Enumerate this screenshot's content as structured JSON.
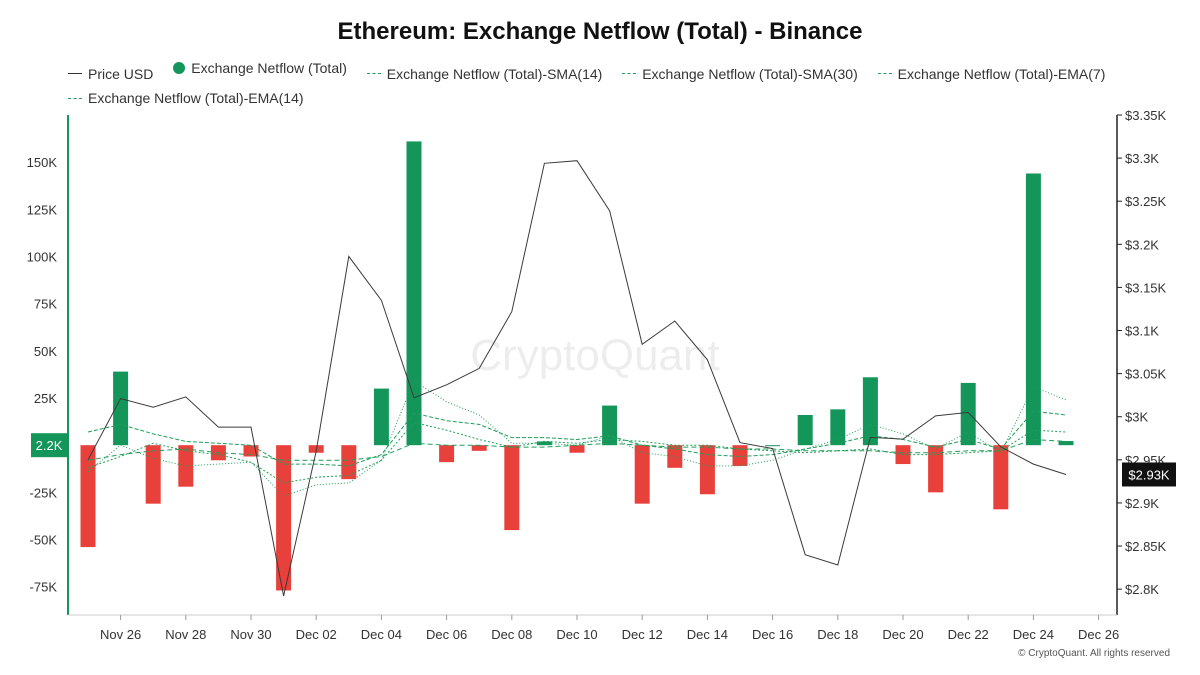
{
  "chart_data": {
    "type": "bar",
    "title": "Ethereum: Exchange Netflow (Total) - Binance",
    "legend": {
      "price": "Price USD",
      "netflow": "Exchange Netflow (Total)",
      "sma14": "Exchange Netflow (Total)-SMA(14)",
      "sma30": "Exchange Netflow (Total)-SMA(30)",
      "ema7": "Exchange Netflow (Total)-EMA(7)",
      "ema14": "Exchange Netflow (Total)-EMA(14)"
    },
    "x_dates": [
      "Nov 25",
      "Nov 26",
      "Nov 27",
      "Nov 28",
      "Nov 29",
      "Nov 30",
      "Dec 01",
      "Dec 02",
      "Dec 03",
      "Dec 04",
      "Dec 05",
      "Dec 06",
      "Dec 07",
      "Dec 08",
      "Dec 09",
      "Dec 10",
      "Dec 11",
      "Dec 12",
      "Dec 13",
      "Dec 14",
      "Dec 15",
      "Dec 16",
      "Dec 17",
      "Dec 18",
      "Dec 19",
      "Dec 20",
      "Dec 21",
      "Dec 22",
      "Dec 23",
      "Dec 24",
      "Dec 25"
    ],
    "x_tick_labels": [
      "Nov 26",
      "Nov 28",
      "Nov 30",
      "Dec 02",
      "Dec 04",
      "Dec 06",
      "Dec 08",
      "Dec 10",
      "Dec 12",
      "Dec 14",
      "Dec 16",
      "Dec 18",
      "Dec 20",
      "Dec 22",
      "Dec 24",
      "Dec 26"
    ],
    "netflow": [
      -54000,
      39000,
      -31000,
      -22000,
      -8000,
      -6000,
      -77000,
      -4000,
      -18000,
      30000,
      161000,
      -9000,
      -3000,
      -45000,
      2000,
      -4000,
      21000,
      -31000,
      -12000,
      -26000,
      -11000,
      0,
      16000,
      19000,
      36000,
      -10000,
      -25000,
      33000,
      -34000,
      144000,
      2200
    ],
    "price_usd": [
      2950,
      3021,
      3011,
      3023,
      2988,
      2988,
      2792,
      2960,
      3186,
      3135,
      3022,
      3037,
      3056,
      3122,
      3294,
      3297,
      3239,
      3084,
      3111,
      3066,
      2970,
      2963,
      2840,
      2828,
      2976,
      2974,
      3001,
      3005,
      2965,
      2945,
      2933
    ],
    "sma14": [
      -12000,
      -6000,
      1000,
      -3000,
      -5000,
      -9000,
      -20000,
      -17000,
      -16000,
      -8000,
      12000,
      8000,
      3000,
      -1000,
      2000,
      1000,
      3000,
      2000,
      0,
      0,
      -2000,
      -3000,
      -4000,
      -3000,
      -2000,
      -5000,
      -5000,
      -4000,
      -3000,
      8000,
      7000
    ],
    "sma30": [
      -8000,
      -5000,
      -3000,
      -2000,
      -4000,
      -5000,
      -8000,
      -8000,
      -8000,
      -6000,
      1000,
      0,
      0,
      -1000,
      -1000,
      0,
      1000,
      0,
      -1000,
      -1000,
      -2000,
      -2000,
      -3000,
      -3000,
      -3000,
      -4000,
      -4000,
      -3000,
      -3000,
      3000,
      2000
    ],
    "ema7": [
      -14000,
      0,
      -7000,
      -11000,
      -10000,
      -9000,
      -27000,
      -21000,
      -20000,
      -8000,
      34000,
      23000,
      16000,
      1000,
      1000,
      0,
      5000,
      -4000,
      -6000,
      -11000,
      -11000,
      -8000,
      -2000,
      3000,
      11000,
      6000,
      -2000,
      7000,
      -4000,
      31000,
      24000
    ],
    "ema14": [
      7000,
      11000,
      6000,
      2000,
      1000,
      0,
      -10000,
      -10000,
      -11000,
      -5000,
      17000,
      13000,
      11000,
      4000,
      4000,
      3000,
      5000,
      0,
      -2000,
      -5000,
      -6000,
      -5000,
      -2000,
      1000,
      5000,
      3000,
      -1000,
      3000,
      -2000,
      18000,
      16000
    ],
    "y_left": {
      "min": -90000,
      "max": 175000,
      "ticks": [
        -75000,
        -50000,
        -25000,
        0,
        25000,
        50000,
        75000,
        100000,
        125000,
        150000
      ],
      "tick_labels": [
        "-75K",
        "-50K",
        "-25K",
        "0",
        "25K",
        "50K",
        "75K",
        "100K",
        "125K",
        "150K"
      ]
    },
    "y_right": {
      "min": 2770,
      "max": 3350,
      "ticks": [
        2800,
        2850,
        2900,
        2950,
        3000,
        3050,
        3100,
        3150,
        3200,
        3250,
        3300,
        3350
      ],
      "tick_labels": [
        "$2.8K",
        "$2.85K",
        "$2.9K",
        "$2.95K",
        "$3K",
        "$3.05K",
        "$3.1K",
        "$3.15K",
        "$3.2K",
        "$3.25K",
        "$3.3K",
        "$3.35K"
      ]
    },
    "last_netflow_badge": "2.2K",
    "last_price_badge": "$2.93K",
    "colors": {
      "positive": "#14965a",
      "negative": "#e8413b",
      "price": "#3a3a3a",
      "ma": "#1f9e5a"
    }
  },
  "watermark": "CryptoQuant",
  "copyright": "© CryptoQuant. All rights reserved"
}
